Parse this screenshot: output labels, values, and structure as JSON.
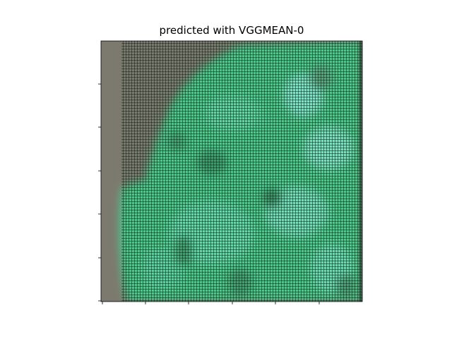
{
  "figure": {
    "title": "predicted with VGGMEAN-0",
    "x_tick_count": 7,
    "y_tick_count": 7,
    "tick_labels_shown": false
  },
  "image": {
    "description_colors": {
      "background_gray": "#7c7a6e",
      "green_light": "#5cd69a",
      "green_mid": "#3fc27c",
      "cyan_light": "#78e6c4",
      "grid_dark": "#1a3a28"
    }
  }
}
